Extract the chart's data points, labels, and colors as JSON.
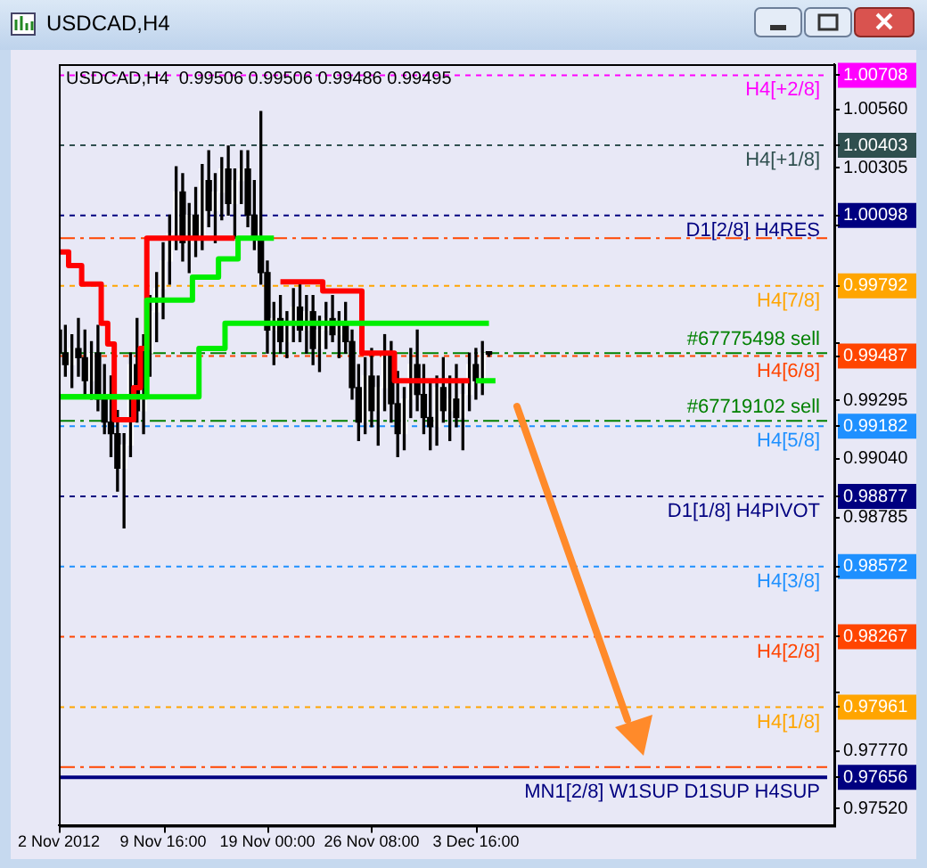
{
  "chart_data": {
    "type": "candlestick",
    "title": "USDCAD,H4",
    "subtitle": "USDCAD,H4  0.99506 0.99506 0.99486 0.99495",
    "categories": [
      "2 Nov 2012",
      null,
      null,
      null,
      null,
      null,
      null,
      null,
      null,
      null,
      null,
      null,
      null,
      null,
      null,
      null,
      "9 Nov 16:00",
      null,
      null,
      null,
      null,
      null,
      null,
      null,
      null,
      null,
      null,
      null,
      null,
      null,
      null,
      null,
      "19 Nov 00:00",
      null,
      null,
      null,
      null,
      null,
      null,
      null,
      null,
      null,
      null,
      null,
      null,
      null,
      null,
      null,
      "26 Nov 08:00",
      null,
      null,
      null,
      null,
      null,
      null,
      null,
      null,
      null,
      null,
      null,
      null,
      null,
      null,
      null,
      "3 Dec 16:00",
      null,
      null,
      null,
      null,
      null,
      null,
      null,
      null,
      null,
      null,
      null,
      null,
      null,
      null,
      null,
      null,
      null,
      null,
      null,
      null,
      null,
      null,
      null,
      null,
      null,
      null,
      null,
      null,
      null,
      null,
      null,
      null,
      null,
      null,
      null,
      null,
      null,
      null,
      null,
      null,
      null,
      null,
      null,
      null,
      null,
      null,
      null,
      null,
      null,
      null,
      null,
      null,
      null,
      null,
      null
    ],
    "ohlc": [
      [
        0.996,
        0.9968,
        0.9945,
        0.995
      ],
      [
        0.995,
        0.9962,
        0.994,
        0.9945
      ],
      [
        0.9945,
        0.9958,
        0.9935,
        0.9952
      ],
      [
        0.9952,
        0.9965,
        0.994,
        0.9948
      ],
      [
        0.9948,
        0.996,
        0.9932,
        0.9938
      ],
      [
        0.9938,
        0.9955,
        0.993,
        0.995
      ],
      [
        0.995,
        0.9962,
        0.9925,
        0.993
      ],
      [
        0.993,
        0.9945,
        0.9915,
        0.992
      ],
      [
        0.992,
        0.994,
        0.9905,
        0.9915
      ],
      [
        0.9915,
        0.9925,
        0.989,
        0.99
      ],
      [
        0.99,
        0.9915,
        0.9874,
        0.991
      ],
      [
        0.991,
        0.995,
        0.9905,
        0.9945
      ],
      [
        0.9945,
        0.9965,
        0.992,
        0.9925
      ],
      [
        0.9925,
        0.9958,
        0.9915,
        0.995
      ],
      [
        0.995,
        0.9975,
        0.994,
        0.9968
      ],
      [
        0.9968,
        0.9985,
        0.9955,
        0.9978
      ],
      [
        0.9978,
        0.9998,
        0.9965,
        0.999
      ],
      [
        0.999,
        1.001,
        0.998,
        1.0002
      ],
      [
        1.0002,
        1.0031,
        0.9995,
        1.002
      ],
      [
        1.002,
        1.0028,
        0.999,
        0.9998
      ],
      [
        0.9998,
        1.0015,
        0.9985,
        1.001
      ],
      [
        1.001,
        1.0022,
        0.9992,
        1.0
      ],
      [
        1.0,
        1.0032,
        0.9995,
        1.0025
      ],
      [
        1.0025,
        1.0038,
        1.0005,
        1.0012
      ],
      [
        1.0012,
        1.0028,
        0.9998,
        1.002
      ],
      [
        1.002,
        1.0035,
        1.0008,
        1.003
      ],
      [
        1.003,
        1.004,
        1.001,
        1.0015
      ],
      [
        1.0015,
        1.003,
        1.0,
        1.0025
      ],
      [
        1.0025,
        1.0038,
        1.0015,
        1.003
      ],
      [
        1.003,
        1.0038,
        1.0005,
        1.001
      ],
      [
        1.001,
        1.0025,
        0.9995,
        1.0
      ],
      [
        1.0,
        1.0055,
        0.998,
        0.9985
      ],
      [
        0.9985,
        0.999,
        0.995,
        0.996
      ],
      [
        0.996,
        0.9972,
        0.9945,
        0.9965
      ],
      [
        0.9965,
        0.9975,
        0.995,
        0.9955
      ],
      [
        0.9955,
        0.9968,
        0.9948,
        0.9962
      ],
      [
        0.9962,
        0.9978,
        0.9955,
        0.997
      ],
      [
        0.997,
        0.998,
        0.9955,
        0.996
      ],
      [
        0.996,
        0.9975,
        0.995,
        0.9968
      ],
      [
        0.9968,
        0.9975,
        0.9945,
        0.9952
      ],
      [
        0.9952,
        0.9966,
        0.9942,
        0.996
      ],
      [
        0.996,
        0.9972,
        0.9952,
        0.9965
      ],
      [
        0.9965,
        0.9975,
        0.9955,
        0.9958
      ],
      [
        0.9958,
        0.9968,
        0.9948,
        0.9962
      ],
      [
        0.9962,
        0.9972,
        0.995,
        0.9955
      ],
      [
        0.9955,
        0.996,
        0.993,
        0.9935
      ],
      [
        0.9935,
        0.9945,
        0.9912,
        0.992
      ],
      [
        0.992,
        0.9948,
        0.9915,
        0.994
      ],
      [
        0.994,
        0.9952,
        0.9918,
        0.9925
      ],
      [
        0.9925,
        0.994,
        0.991,
        0.9935
      ],
      [
        0.9935,
        0.9958,
        0.9925,
        0.995
      ],
      [
        0.995,
        0.9955,
        0.992,
        0.9928
      ],
      [
        0.9928,
        0.9942,
        0.9905,
        0.9915
      ],
      [
        0.9915,
        0.9935,
        0.9908,
        0.993
      ],
      [
        0.993,
        0.9952,
        0.9922,
        0.9945
      ],
      [
        0.9945,
        0.996,
        0.9925,
        0.9932
      ],
      [
        0.9932,
        0.9945,
        0.9915,
        0.9922
      ],
      [
        0.9922,
        0.9938,
        0.9908,
        0.9918
      ],
      [
        0.9918,
        0.994,
        0.991,
        0.9935
      ],
      [
        0.9935,
        0.9948,
        0.992,
        0.9925
      ],
      [
        0.9925,
        0.994,
        0.9912,
        0.993
      ],
      [
        0.993,
        0.9945,
        0.9918,
        0.9922
      ],
      [
        0.9922,
        0.9938,
        0.9908,
        0.9932
      ],
      [
        0.9932,
        0.995,
        0.9925,
        0.9945
      ],
      [
        0.9945,
        0.9952,
        0.993,
        0.9938
      ],
      [
        0.9938,
        0.9955,
        0.9932,
        0.995
      ],
      [
        0.99506,
        0.99506,
        0.99486,
        0.99495
      ],
      null,
      null,
      null,
      null,
      null,
      null,
      null,
      null,
      null,
      null,
      null,
      null,
      null,
      null,
      null,
      null,
      null,
      null,
      null,
      null,
      null,
      null,
      null,
      null,
      null,
      null,
      null,
      null,
      null,
      null,
      null,
      null,
      null,
      null,
      null,
      null,
      null,
      null,
      null,
      null,
      null,
      null,
      null,
      null,
      null,
      null,
      null,
      null,
      null,
      null,
      null,
      null,
      null
    ],
    "series": [
      {
        "type": "step",
        "color": "#00ee00",
        "values": [
          0.9931,
          0.9931,
          0.9931,
          0.9931,
          0.9931,
          0.9931,
          0.9931,
          0.9931,
          0.9931,
          0.9931,
          0.9931,
          0.9931,
          0.9931,
          0.9931,
          0.9931,
          0.9931,
          0.9931,
          0.9931,
          0.9931,
          0.9931,
          0.9931,
          0.9931,
          0.9952,
          0.9952,
          0.9952,
          0.9952,
          0.9963,
          0.9963,
          0.9963,
          0.9963,
          0.9963,
          0.9963,
          0.9963,
          0.9963,
          0.9963,
          0.9963,
          0.9963,
          0.9963,
          0.9963,
          0.9963,
          0.9963,
          0.9963,
          0.9963,
          0.9963,
          0.9963,
          0.9963,
          0.9963,
          0.9963,
          0.9963,
          0.9963,
          0.9963,
          0.9963,
          0.9963,
          0.9963,
          0.9963,
          0.9963,
          0.9963,
          0.9963,
          0.9963,
          0.9963,
          0.9963,
          0.9963,
          0.9963,
          0.9963,
          0.9963,
          0.9963,
          0.9963,
          null,
          null,
          null,
          null,
          null,
          null,
          null,
          null,
          null,
          null,
          null,
          null,
          null,
          null,
          null,
          null,
          null,
          null,
          null,
          null,
          null,
          null,
          null,
          null,
          null,
          null,
          null,
          null,
          null,
          null,
          null,
          null,
          null,
          null,
          null,
          null,
          null,
          null,
          null,
          null,
          null,
          null,
          null,
          null,
          null,
          null,
          null,
          null,
          null,
          null,
          null,
          null,
          null
        ]
      },
      {
        "type": "step",
        "color": "#00ee00",
        "values": [
          0.9931,
          0.9931,
          0.9931,
          0.9931,
          0.9931,
          0.9931,
          0.9931,
          0.9931,
          0.9931,
          0.9931,
          0.9931,
          0.9931,
          0.9931,
          0.9931,
          0.9973,
          0.9973,
          0.9973,
          0.9973,
          0.9973,
          0.9973,
          0.9973,
          0.9983,
          0.9983,
          0.9983,
          0.9983,
          0.9991,
          0.9991,
          0.9991,
          1.0,
          1.0,
          1.0,
          1.0,
          1.0,
          1.0,
          null,
          null,
          null,
          null,
          null,
          null,
          null,
          null,
          null,
          null,
          null,
          null,
          null,
          null,
          null,
          null,
          null,
          null,
          null,
          null,
          null,
          null,
          null,
          null,
          null,
          null,
          null,
          null,
          null,
          null,
          0.9938,
          0.9938,
          0.9938,
          0.9938,
          null,
          null,
          null,
          null,
          null,
          null,
          null,
          null,
          null,
          null,
          null,
          null,
          null,
          null,
          null,
          null,
          null,
          null,
          null,
          null,
          null,
          null,
          null,
          null,
          null,
          null,
          null,
          null,
          null,
          null,
          null,
          null,
          null,
          null,
          null,
          null,
          null,
          null,
          null,
          null,
          null,
          null,
          null,
          null,
          null,
          null,
          null,
          null,
          null,
          null,
          null,
          null
        ]
      },
      {
        "type": "step",
        "color": "#ff0000",
        "values": [
          0.9994,
          0.9994,
          0.9988,
          0.9988,
          0.998,
          0.998,
          0.998,
          0.9963,
          0.9954,
          0.9921,
          0.9921,
          0.9921,
          0.9935,
          0.9952,
          1.0,
          1.0,
          1.0,
          1.0,
          1.0,
          1.0,
          1.0,
          1.0,
          1.0,
          1.0,
          1.0,
          1.0,
          1.0,
          1.0,
          null,
          null,
          null,
          null,
          null,
          null,
          0.9981,
          0.9981,
          0.9981,
          0.9981,
          0.9981,
          0.9981,
          0.9981,
          0.9977,
          0.9977,
          0.9977,
          0.9977,
          0.9977,
          0.9977,
          0.995,
          0.995,
          0.995,
          0.995,
          0.995,
          0.9938,
          0.9938,
          0.9938,
          0.9938,
          0.9938,
          0.9938,
          0.9938,
          0.9938,
          0.9938,
          0.9938,
          0.9938,
          0.9938,
          null,
          null,
          null,
          null,
          null,
          null,
          null,
          null,
          null,
          null,
          null,
          null,
          null,
          null,
          null,
          null,
          null,
          null,
          null,
          null,
          null,
          null,
          null,
          null,
          null,
          null,
          null,
          null,
          null,
          null,
          null,
          null,
          null,
          null,
          null,
          null,
          null,
          null,
          null,
          null,
          null,
          null,
          null,
          null,
          null,
          null,
          null,
          null,
          null,
          null,
          null,
          null,
          null,
          null,
          null,
          null
        ]
      }
    ],
    "ylim": [
      0.97446,
      1.00756
    ],
    "yticks": [
      {
        "value": 1.00708,
        "label": "1.00708"
      },
      {
        "value": 1.0056,
        "label": "1.00560"
      },
      {
        "value": 1.00403,
        "label": "1.00403"
      },
      {
        "value": 1.00305,
        "label": "1.00305"
      },
      {
        "value": 1.00098,
        "label": "1.00098"
      },
      {
        "value": 1.00055,
        "label": null
      },
      {
        "value": 0.99792,
        "label": "0.99792"
      },
      {
        "value": 0.99545,
        "label": null
      },
      {
        "value": 0.99487,
        "label": "0.99487"
      },
      {
        "value": 0.99295,
        "label": "0.99295"
      },
      {
        "value": 0.99182,
        "label": "0.99182"
      },
      {
        "value": 0.9904,
        "label": "0.99040"
      },
      {
        "value": 0.98877,
        "label": "0.98877"
      },
      {
        "value": 0.98785,
        "label": "0.98785"
      },
      {
        "value": 0.98572,
        "label": "0.98572"
      },
      {
        "value": 0.9853,
        "label": null
      },
      {
        "value": 0.98267,
        "label": "0.98267"
      },
      {
        "value": 0.98025,
        "label": null
      },
      {
        "value": 0.97961,
        "label": "0.97961"
      },
      {
        "value": 0.9777,
        "label": "0.97770"
      },
      {
        "value": 0.97656,
        "label": "0.97656"
      },
      {
        "value": 0.9752,
        "label": "0.97520"
      }
    ],
    "ref_lines": [
      {
        "axis": "y",
        "value": 1.00708,
        "label": "H4[+2/8]",
        "color": "#ff00ff",
        "line_style": "dotted"
      },
      {
        "axis": "y",
        "value": 1.00403,
        "label": "H4[+1/8]",
        "color": "#2f4f4f",
        "line_style": "dotted"
      },
      {
        "axis": "y",
        "value": 1.00098,
        "label": "D1[2/8] H4RES",
        "color": "#000080",
        "line_style": "dotted"
      },
      {
        "axis": "y",
        "value": 1.0,
        "color": "#ff4500",
        "line_style": "dashed"
      },
      {
        "axis": "y",
        "value": 0.99792,
        "label": "H4[7/8]",
        "color": "#ffa500",
        "line_style": "dotted"
      },
      {
        "axis": "y",
        "value": 0.99487,
        "label": "H4[6/8]",
        "color": "#ff4500",
        "line_style": "dotted"
      },
      {
        "axis": "y",
        "value": 0.995,
        "label": "#67775498 sell",
        "color": "#008000",
        "line_style": "dashed"
      },
      {
        "axis": "y",
        "value": 0.99205,
        "label": "#67719102 sell",
        "color": "#008000",
        "line_style": "dashed"
      },
      {
        "axis": "y",
        "value": 0.99182,
        "label": "H4[5/8]",
        "color": "#1e90ff",
        "line_style": "dotted"
      },
      {
        "axis": "y",
        "value": 0.98877,
        "label": "D1[1/8] H4PIVOT",
        "color": "#000080",
        "line_style": "dotted"
      },
      {
        "axis": "y",
        "value": 0.98572,
        "label": "H4[3/8]",
        "color": "#1e90ff",
        "line_style": "dotted"
      },
      {
        "axis": "y",
        "value": 0.98267,
        "label": "H4[2/8]",
        "color": "#ff4500",
        "line_style": "dotted"
      },
      {
        "axis": "y",
        "value": 0.97961,
        "label": "H4[1/8]",
        "color": "#ffa500",
        "line_style": "dotted"
      },
      {
        "axis": "y",
        "value": 0.977,
        "color": "#ff4500",
        "line_style": "dashed"
      },
      {
        "axis": "y",
        "value": 0.97656,
        "label": "MN1[2/8] W1SUP D1SUP H4SUP",
        "color": "#000080",
        "line_style": "solid"
      }
    ],
    "legend": false
  }
}
